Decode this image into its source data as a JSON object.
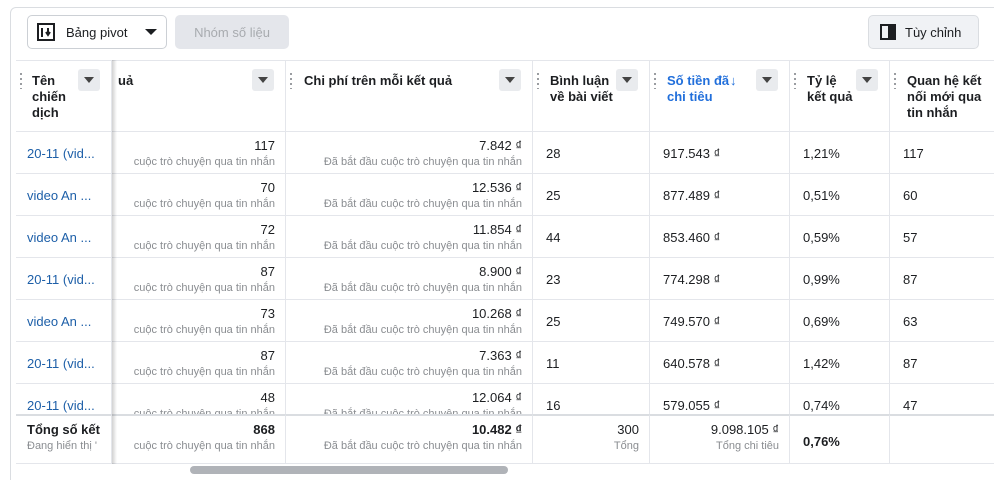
{
  "toolbar": {
    "pivot": "Bảng pivot",
    "metrics_group": "Nhóm số liệu",
    "customize": "Tùy chỉnh"
  },
  "table": {
    "headers": [
      "Tên chiến dịch",
      "uả",
      "Chi phí trên mỗi kết quả",
      "Bình luận về bài viết",
      "Số tiền đã chi tiêu",
      "Tỷ lệ kết quả",
      "Quan hệ kết nối mới qua tin nhắn"
    ],
    "rows": [
      {
        "campaign": "20-11 (vid...",
        "results": 117,
        "results_note": "cuộc trò chuyện qua tin nhắn",
        "cost": "7.842 ₫",
        "cost_note": "Đã bắt đầu cuộc trò chuyện qua tin nhắn",
        "comments": 28,
        "spent": "917.543 ₫",
        "rate": "1,21%",
        "connections": 117
      },
      {
        "campaign": "video An ...",
        "results": 70,
        "results_note": "cuộc trò chuyện qua tin nhắn",
        "cost": "12.536 ₫",
        "cost_note": "Đã bắt đầu cuộc trò chuyện qua tin nhắn",
        "comments": 25,
        "spent": "877.489 ₫",
        "rate": "0,51%",
        "connections": 60
      },
      {
        "campaign": "video An ...",
        "results": 72,
        "results_note": "cuộc trò chuyện qua tin nhắn",
        "cost": "11.854 ₫",
        "cost_note": "Đã bắt đầu cuộc trò chuyện qua tin nhắn",
        "comments": 44,
        "spent": "853.460 ₫",
        "rate": "0,59%",
        "connections": 57
      },
      {
        "campaign": "20-11 (vid...",
        "results": 87,
        "results_note": "cuộc trò chuyện qua tin nhắn",
        "cost": "8.900 ₫",
        "cost_note": "Đã bắt đầu cuộc trò chuyện qua tin nhắn",
        "comments": 23,
        "spent": "774.298 ₫",
        "rate": "0,99%",
        "connections": 87
      },
      {
        "campaign": "video An ...",
        "results": 73,
        "results_note": "cuộc trò chuyện qua tin nhắn",
        "cost": "10.268 ₫",
        "cost_note": "Đã bắt đầu cuộc trò chuyện qua tin nhắn",
        "comments": 25,
        "spent": "749.570 ₫",
        "rate": "0,69%",
        "connections": 63
      },
      {
        "campaign": "20-11 (vid...",
        "results": 87,
        "results_note": "cuộc trò chuyện qua tin nhắn",
        "cost": "7.363 ₫",
        "cost_note": "Đã bắt đầu cuộc trò chuyện qua tin nhắn",
        "comments": 11,
        "spent": "640.578 ₫",
        "rate": "1,42%",
        "connections": 87
      },
      {
        "campaign": "20-11 (vid...",
        "results": 48,
        "results_note": "cuộc trò chuyện qua tin nhắn",
        "cost": "12.064 ₫",
        "cost_note": "Đã bắt đầu cuộc trò chuyện qua tin nhắn",
        "comments": 16,
        "spent": "579.055 ₫",
        "rate": "0,74%",
        "connections": 47
      }
    ],
    "footer": {
      "label": "Tổng số kết",
      "label_note": "Đang hiển thị '",
      "results": 868,
      "results_note": "cuộc trò chuyện qua tin nhắn",
      "cost": "10.482 ₫",
      "cost_note": "Đã bắt đầu cuộc trò chuyện qua tin nhắn",
      "comments": 300,
      "comments_note": "Tổng",
      "spent": "9.098.105 ₫",
      "spent_note": "Tổng chi tiêu",
      "rate": "0,76%"
    }
  }
}
